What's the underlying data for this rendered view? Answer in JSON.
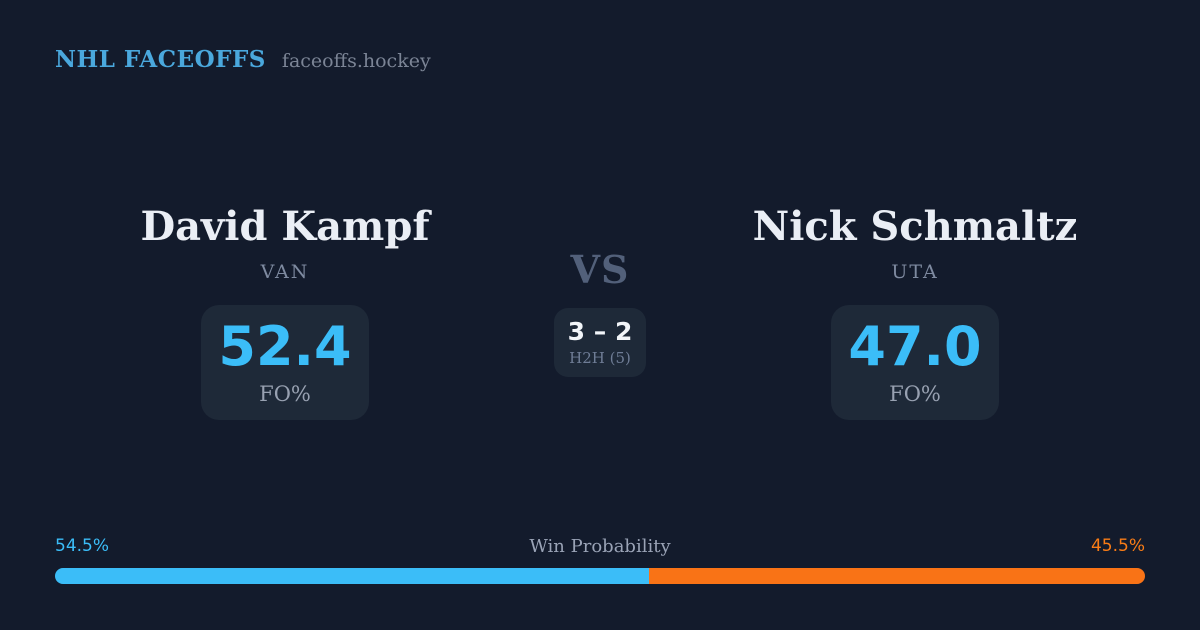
{
  "header": {
    "brand": "NHL FACEOFFS",
    "site": "faceoffs.hockey"
  },
  "matchup": {
    "vs_label": "VS",
    "h2h": {
      "score": "3 – 2",
      "label": "H2H (5)"
    },
    "players": [
      {
        "name": "David Kampf",
        "team": "VAN",
        "stat_value": "52.4",
        "stat_label": "FO%"
      },
      {
        "name": "Nick Schmaltz",
        "team": "UTA",
        "stat_value": "47.0",
        "stat_label": "FO%"
      }
    ]
  },
  "win_probability": {
    "label": "Win Probability",
    "left_pct_text": "54.5%",
    "right_pct_text": "45.5%",
    "left_value": 54.5,
    "right_value": 45.5
  },
  "colors": {
    "background": "#131b2c",
    "card": "#1e2938",
    "accent_blue": "#3bbdf8",
    "brand_blue": "#4aa8dd",
    "accent_orange": "#f97316",
    "text_primary": "#eaeef5",
    "text_muted": "#7e8aa0",
    "vs_gray": "#52607a"
  },
  "chart_data": {
    "type": "bar",
    "title": "Win Probability",
    "categories": [
      "David Kampf (VAN)",
      "Nick Schmaltz (UTA)"
    ],
    "series": [
      {
        "name": "Win Probability %",
        "values": [
          54.5,
          45.5
        ]
      },
      {
        "name": "FO%",
        "values": [
          52.4,
          47.0
        ]
      },
      {
        "name": "H2H wins (last 5)",
        "values": [
          3,
          2
        ]
      }
    ],
    "xlabel": "",
    "ylabel": "",
    "ylim": [
      0,
      100
    ],
    "legend": false,
    "grid": false,
    "layout": "single horizontal stacked probability bar, blue vs orange"
  }
}
